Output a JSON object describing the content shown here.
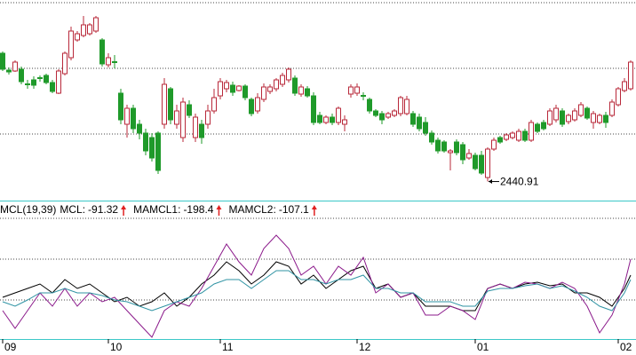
{
  "chart_data": [
    {
      "type": "candlestick",
      "up_color": "#b8283a",
      "down_color": "#1f9a2a",
      "ylim": [
        2398,
        2850
      ],
      "ohlc": [
        [
          2730,
          2734,
          2690,
          2694
        ],
        [
          2692,
          2698,
          2682,
          2688
        ],
        [
          2690,
          2714,
          2688,
          2710
        ],
        [
          2694,
          2700,
          2660,
          2666
        ],
        [
          2661,
          2670,
          2650,
          2659
        ],
        [
          2670,
          2678,
          2650,
          2658
        ],
        [
          2675,
          2680,
          2666,
          2673
        ],
        [
          2680,
          2684,
          2660,
          2664
        ],
        [
          2664,
          2670,
          2640,
          2644
        ],
        [
          2640,
          2694,
          2638,
          2690
        ],
        [
          2684,
          2734,
          2680,
          2730
        ],
        [
          2720,
          2790,
          2714,
          2780
        ],
        [
          2760,
          2780,
          2756,
          2774
        ],
        [
          2770,
          2814,
          2766,
          2794
        ],
        [
          2774,
          2798,
          2770,
          2794
        ],
        [
          2780,
          2814,
          2776,
          2810
        ],
        [
          2760,
          2764,
          2700,
          2706
        ],
        [
          2704,
          2730,
          2698,
          2720
        ],
        [
          2711,
          2726,
          2696,
          2709
        ],
        [
          2640,
          2650,
          2570,
          2580
        ],
        [
          2570,
          2614,
          2540,
          2606
        ],
        [
          2606,
          2614,
          2550,
          2560
        ],
        [
          2570,
          2580,
          2536,
          2550
        ],
        [
          2550,
          2560,
          2500,
          2510
        ],
        [
          2540,
          2550,
          2486,
          2494
        ],
        [
          2550,
          2554,
          2458,
          2466
        ],
        [
          2570,
          2674,
          2560,
          2660
        ],
        [
          2650,
          2654,
          2570,
          2580
        ],
        [
          2570,
          2614,
          2560,
          2600
        ],
        [
          2540,
          2630,
          2530,
          2620
        ],
        [
          2614,
          2624,
          2584,
          2590
        ],
        [
          2540,
          2594,
          2530,
          2586
        ],
        [
          2570,
          2580,
          2526,
          2540
        ],
        [
          2570,
          2614,
          2560,
          2600
        ],
        [
          2600,
          2650,
          2594,
          2630
        ],
        [
          2634,
          2674,
          2626,
          2666
        ],
        [
          2650,
          2670,
          2642,
          2664
        ],
        [
          2658,
          2666,
          2634,
          2642
        ],
        [
          2646,
          2658,
          2644,
          2656
        ],
        [
          2656,
          2660,
          2624,
          2630
        ],
        [
          2626,
          2630,
          2588,
          2594
        ],
        [
          2600,
          2640,
          2594,
          2630
        ],
        [
          2626,
          2662,
          2620,
          2654
        ],
        [
          2644,
          2660,
          2638,
          2654
        ],
        [
          2650,
          2674,
          2644,
          2670
        ],
        [
          2660,
          2686,
          2654,
          2680
        ],
        [
          2670,
          2698,
          2664,
          2694
        ],
        [
          2674,
          2680,
          2634,
          2640
        ],
        [
          2638,
          2660,
          2632,
          2654
        ],
        [
          2650,
          2656,
          2630,
          2634
        ],
        [
          2634,
          2642,
          2568,
          2574
        ],
        [
          2590,
          2598,
          2570,
          2574
        ],
        [
          2574,
          2590,
          2570,
          2586
        ],
        [
          2586,
          2594,
          2568,
          2574
        ],
        [
          2574,
          2610,
          2568,
          2606
        ],
        [
          2570,
          2590,
          2554,
          2580
        ],
        [
          2638,
          2660,
          2630,
          2654
        ],
        [
          2640,
          2662,
          2634,
          2654
        ],
        [
          2635,
          2642,
          2624,
          2633
        ],
        [
          2626,
          2630,
          2594,
          2600
        ],
        [
          2600,
          2604,
          2586,
          2590
        ],
        [
          2594,
          2600,
          2570,
          2580
        ],
        [
          2586,
          2598,
          2582,
          2594
        ],
        [
          2590,
          2604,
          2586,
          2600
        ],
        [
          2594,
          2634,
          2588,
          2630
        ],
        [
          2594,
          2634,
          2590,
          2626
        ],
        [
          2594,
          2600,
          2564,
          2570
        ],
        [
          2586,
          2594,
          2554,
          2560
        ],
        [
          2574,
          2586,
          2544,
          2550
        ],
        [
          2550,
          2556,
          2524,
          2530
        ],
        [
          2534,
          2540,
          2504,
          2510
        ],
        [
          2530,
          2534,
          2506,
          2510
        ],
        [
          2506,
          2514,
          2466,
          2510
        ],
        [
          2530,
          2536,
          2500,
          2506
        ],
        [
          2524,
          2530,
          2480,
          2490
        ],
        [
          2494,
          2514,
          2490,
          2504
        ],
        [
          2500,
          2506,
          2466,
          2470
        ],
        [
          2500,
          2510,
          2456,
          2460
        ],
        [
          2450,
          2518,
          2440.91,
          2514
        ],
        [
          2514,
          2540,
          2510,
          2534
        ],
        [
          2540,
          2544,
          2526,
          2530
        ],
        [
          2536,
          2550,
          2532,
          2546
        ],
        [
          2540,
          2554,
          2536,
          2550
        ],
        [
          2534,
          2560,
          2530,
          2554
        ],
        [
          2554,
          2560,
          2530,
          2534
        ],
        [
          2534,
          2580,
          2530,
          2574
        ],
        [
          2570,
          2574,
          2550,
          2554
        ],
        [
          2574,
          2580,
          2556,
          2560
        ],
        [
          2570,
          2606,
          2566,
          2600
        ],
        [
          2580,
          2614,
          2574,
          2606
        ],
        [
          2600,
          2606,
          2564,
          2570
        ],
        [
          2576,
          2594,
          2570,
          2590
        ],
        [
          2580,
          2606,
          2576,
          2600
        ],
        [
          2590,
          2620,
          2586,
          2614
        ],
        [
          2606,
          2610,
          2580,
          2584
        ],
        [
          2574,
          2600,
          2560,
          2594
        ],
        [
          2574,
          2594,
          2570,
          2590
        ],
        [
          2590,
          2598,
          2562,
          2574
        ],
        [
          2590,
          2626,
          2586,
          2620
        ],
        [
          2614,
          2654,
          2610,
          2650
        ],
        [
          2646,
          2674,
          2642,
          2666
        ],
        [
          2650,
          2714,
          2646,
          2710
        ]
      ]
    },
    {
      "type": "line",
      "title": "MCL(19,39)",
      "xlim": [
        0,
        101
      ],
      "ylim": [
        -360,
        184
      ],
      "xticks": [
        {
          "value": 0,
          "label": "09"
        },
        {
          "value": 17,
          "label": "10"
        },
        {
          "value": 35,
          "label": "11"
        },
        {
          "value": 57,
          "label": "12"
        },
        {
          "value": 76,
          "label": "01"
        },
        {
          "value": 99,
          "label": "02"
        }
      ],
      "x": [
        0,
        2,
        4,
        6,
        8,
        10,
        12,
        14,
        16,
        18,
        20,
        22,
        24,
        26,
        28,
        30,
        32,
        34,
        36,
        38,
        40,
        42,
        44,
        46,
        48,
        50,
        52,
        54,
        56,
        58,
        60,
        62,
        64,
        66,
        68,
        70,
        72,
        74,
        76,
        78,
        80,
        82,
        84,
        86,
        88,
        90,
        92,
        94,
        96,
        98,
        100,
        101
      ],
      "series": [
        {
          "name": "MCL",
          "color": "#000000",
          "readout": -91.32,
          "values": [
            -172,
            -152,
            -132,
            -112,
            -152,
            -92,
            -132,
            -112,
            -152,
            -192,
            -172,
            -212,
            -192,
            -152,
            -212,
            -172,
            -112,
            -72,
            -12,
            -52,
            -112,
            -72,
            -12,
            -32,
            -112,
            -72,
            -132,
            -92,
            -52,
            -32,
            -132,
            -112,
            -172,
            -152,
            -212,
            -212,
            -212,
            -232,
            -232,
            -132,
            -112,
            -132,
            -112,
            -104,
            -120,
            -112,
            -152,
            -152,
            -172,
            -212,
            -132,
            -72
          ]
        },
        {
          "name": "MAMCL1",
          "color": "#8b1a8b",
          "readout": -198.4,
          "values": [
            -232,
            -312,
            -232,
            -152,
            -212,
            -132,
            -212,
            -152,
            -192,
            -172,
            -232,
            -292,
            -352,
            -232,
            -192,
            -212,
            -132,
            -32,
            68,
            -12,
            -72,
            48,
            108,
            48,
            -72,
            -32,
            -112,
            -32,
            -72,
            8,
            -152,
            -112,
            -172,
            -152,
            -252,
            -252,
            -212,
            -232,
            -272,
            -132,
            -112,
            -132,
            -104,
            -112,
            -132,
            -104,
            -132,
            -212,
            -332,
            -252,
            -112,
            0
          ]
        },
        {
          "name": "MAMCL2",
          "color": "#2f93a3",
          "readout": -107.1,
          "values": [
            -192,
            -212,
            -184,
            -152,
            -152,
            -132,
            -152,
            -152,
            -164,
            -184,
            -192,
            -212,
            -232,
            -212,
            -192,
            -172,
            -152,
            -112,
            -92,
            -92,
            -132,
            -92,
            -52,
            -52,
            -92,
            -92,
            -112,
            -92,
            -92,
            -72,
            -132,
            -132,
            -152,
            -152,
            -192,
            -192,
            -192,
            -212,
            -212,
            -144,
            -132,
            -132,
            -120,
            -112,
            -132,
            -120,
            -144,
            -172,
            -212,
            -232,
            -152,
            -92
          ]
        }
      ]
    }
  ]
}
